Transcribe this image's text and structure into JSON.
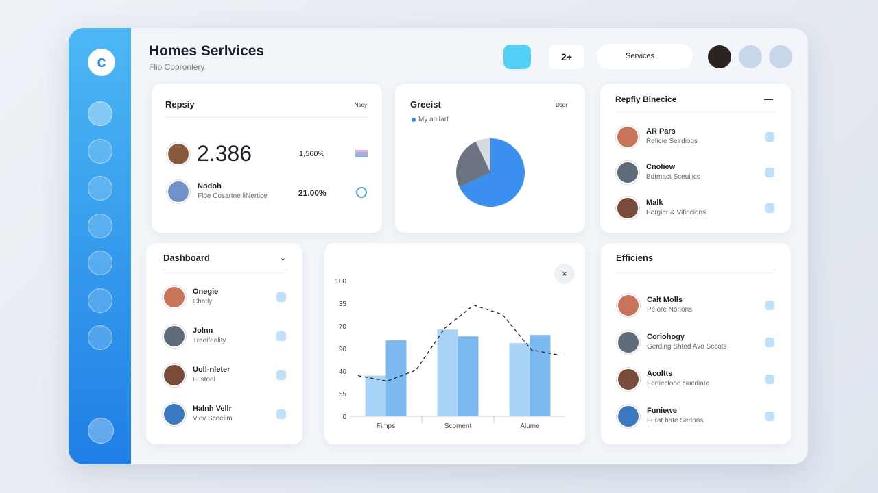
{
  "header": {
    "title": "Homes Serlvices",
    "subtitle": "Flio Copronlery",
    "badge": "2+",
    "search": "Services"
  },
  "summary": {
    "title": "Repsiy",
    "tag": "Nsey",
    "stat": "2.386",
    "stat_pct": "1,560%",
    "row_name": "Nodoh",
    "row_sub": "Flöe Cosartne liNertice",
    "row_pct": "21.00%"
  },
  "pie_card": {
    "title": "Greeist",
    "tag": "Dsdr",
    "legend": "My anitart",
    "chart_data": {
      "type": "pie",
      "values": [
        68,
        25,
        7
      ],
      "colors": [
        "#3a8ff0",
        "#6b7480",
        "#d6dbe2"
      ]
    }
  },
  "reply_card": {
    "title": "Repfiy Binecice",
    "items": [
      {
        "name": "AR Pars",
        "sub": "Reficie Selrdiogs"
      },
      {
        "name": "Cnoliew",
        "sub": "Bdtmact Sceuilics"
      },
      {
        "name": "Malk",
        "sub": "Pergier & Vifiocions"
      }
    ]
  },
  "dashboard": {
    "title": "Dashboard",
    "items": [
      {
        "name": "Onegie",
        "sub": "Chatly"
      },
      {
        "name": "Jolnn",
        "sub": "Traoifeality"
      },
      {
        "name": "Uoll-nleter",
        "sub": "Fustool"
      },
      {
        "name": "Halnh Vellr",
        "sub": "Viev Scoelim"
      }
    ]
  },
  "bar_card": {
    "chart_data": {
      "type": "bar",
      "categories": [
        "Fimps",
        "Scoment",
        "Alume"
      ],
      "ylim": [
        0,
        100
      ],
      "axis_labels": [
        "100",
        "35",
        "70",
        "90",
        "40",
        "55",
        "0"
      ],
      "series": [
        {
          "color": "#a9d3f7",
          "values": [
            30,
            64,
            54
          ]
        },
        {
          "color": "#7db9f1",
          "values": [
            56,
            59,
            60
          ]
        }
      ],
      "line": [
        30,
        26,
        34,
        65,
        82,
        75,
        49,
        45
      ]
    }
  },
  "efficiens": {
    "title": "Efficiens",
    "items": [
      {
        "name": "Calt Molls",
        "sub": "Pelore Norions"
      },
      {
        "name": "Coriohogy",
        "sub": "Gerding Shted Avo Sccots"
      },
      {
        "name": "Acoltts",
        "sub": "Fortieclooe Sucdiate"
      },
      {
        "name": "Funiewe",
        "sub": "Furat bate Serlons"
      }
    ]
  }
}
